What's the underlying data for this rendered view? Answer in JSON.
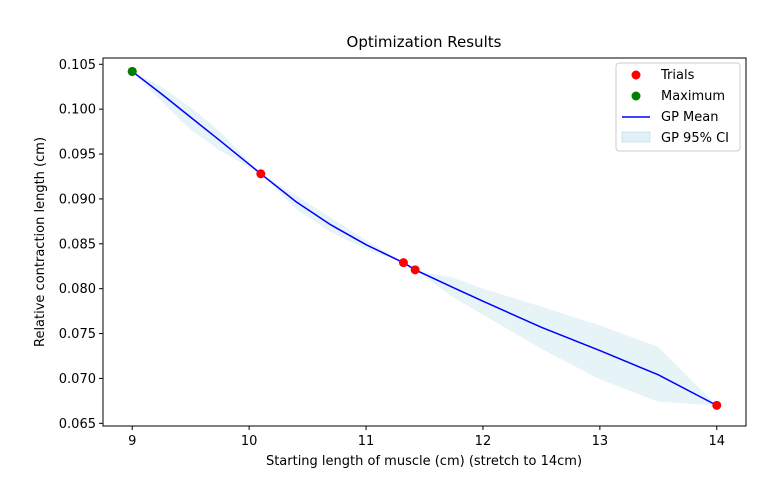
{
  "chart_data": {
    "type": "scatter",
    "title": "Optimization Results",
    "xlabel": "Starting length of muscle (cm) (stretch to 14cm)",
    "ylabel": "Relative contraction length (cm)",
    "xlim": [
      8.75,
      14.25
    ],
    "ylim": [
      0.0647,
      0.1057
    ],
    "x_ticks": [
      9,
      10,
      11,
      12,
      13,
      14
    ],
    "y_ticks": [
      0.065,
      0.07,
      0.075,
      0.08,
      0.085,
      0.09,
      0.095,
      0.1,
      0.105
    ],
    "x_tick_labels": [
      "9",
      "10",
      "11",
      "12",
      "13",
      "14"
    ],
    "y_tick_labels": [
      "0.065",
      "0.070",
      "0.075",
      "0.080",
      "0.085",
      "0.090",
      "0.095",
      "0.100",
      "0.105"
    ],
    "grid": false,
    "legend_position": "top-right",
    "legend": [
      "Trials",
      "Maximum",
      "GP Mean",
      "GP 95% CI"
    ],
    "colors": {
      "trials": "#ff0000",
      "maximum": "#008000",
      "gp_mean": "#0000ff",
      "ci_fill": "#add8e6"
    },
    "series": [
      {
        "name": "Trials",
        "kind": "scatter",
        "points": [
          {
            "x": 9.0,
            "y": 0.1042
          },
          {
            "x": 10.1,
            "y": 0.0928
          },
          {
            "x": 11.32,
            "y": 0.0829
          },
          {
            "x": 11.42,
            "y": 0.0821
          },
          {
            "x": 14.0,
            "y": 0.067
          }
        ]
      },
      {
        "name": "Maximum",
        "kind": "scatter",
        "points": [
          {
            "x": 9.0,
            "y": 0.1042
          }
        ]
      },
      {
        "name": "GP Mean",
        "kind": "line",
        "points": [
          {
            "x": 9.0,
            "y": 0.1042
          },
          {
            "x": 9.25,
            "y": 0.1017
          },
          {
            "x": 9.5,
            "y": 0.0991
          },
          {
            "x": 9.75,
            "y": 0.0965
          },
          {
            "x": 10.1,
            "y": 0.0928
          },
          {
            "x": 10.4,
            "y": 0.0897
          },
          {
            "x": 10.7,
            "y": 0.0871
          },
          {
            "x": 11.0,
            "y": 0.0849
          },
          {
            "x": 11.32,
            "y": 0.0829
          },
          {
            "x": 11.42,
            "y": 0.0821
          },
          {
            "x": 11.75,
            "y": 0.0801
          },
          {
            "x": 12.0,
            "y": 0.0786
          },
          {
            "x": 12.5,
            "y": 0.0757
          },
          {
            "x": 13.0,
            "y": 0.0731
          },
          {
            "x": 13.5,
            "y": 0.0704
          },
          {
            "x": 14.0,
            "y": 0.067
          }
        ]
      },
      {
        "name": "GP 95% CI",
        "kind": "band",
        "x": [
          9.0,
          9.25,
          9.5,
          9.75,
          10.1,
          10.4,
          10.7,
          11.0,
          11.32,
          11.42,
          11.75,
          12.0,
          12.5,
          13.0,
          13.5,
          14.0
        ],
        "lower": [
          0.1042,
          0.1009,
          0.0977,
          0.0954,
          0.0928,
          0.0889,
          0.0863,
          0.0844,
          0.0829,
          0.0821,
          0.079,
          0.0771,
          0.0733,
          0.0699,
          0.0674,
          0.067
        ],
        "upper": [
          0.1042,
          0.1025,
          0.1002,
          0.0975,
          0.0928,
          0.0904,
          0.0879,
          0.0854,
          0.0829,
          0.0821,
          0.0812,
          0.08,
          0.078,
          0.0759,
          0.0735,
          0.067
        ]
      }
    ]
  }
}
